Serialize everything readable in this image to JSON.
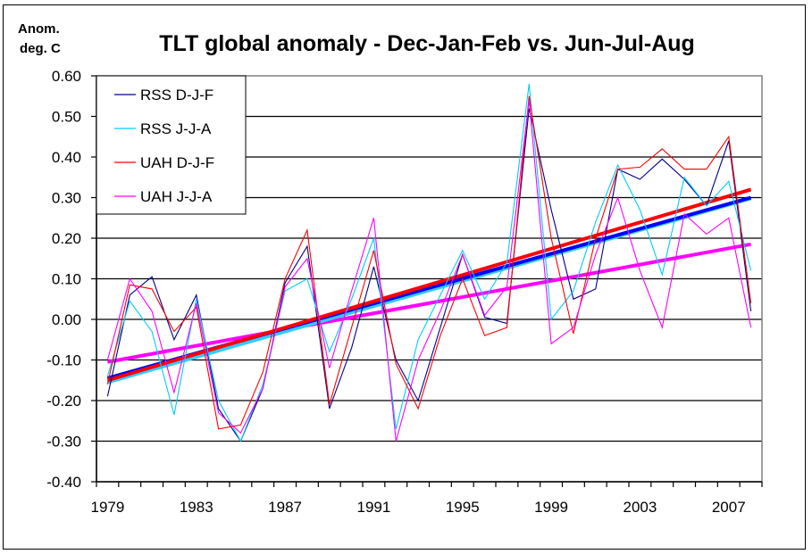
{
  "chart_data": {
    "type": "line",
    "title": "TLT global anomaly - Dec-Jan-Feb vs. Jun-Jul-Aug",
    "ylabel_lines": [
      "Anom.",
      "deg. C"
    ],
    "xlabel": "",
    "ylim": [
      -0.4,
      0.6
    ],
    "yticks": [
      "0.60",
      "0.50",
      "0.40",
      "0.30",
      "0.20",
      "0.10",
      "0.00",
      "-0.10",
      "-0.20",
      "-0.30",
      "-0.40"
    ],
    "ytick_values": [
      0.6,
      0.5,
      0.4,
      0.3,
      0.2,
      0.1,
      0.0,
      -0.1,
      -0.2,
      -0.3,
      -0.4
    ],
    "x": [
      1979,
      1980,
      1981,
      1982,
      1983,
      1984,
      1985,
      1986,
      1987,
      1988,
      1989,
      1990,
      1991,
      1992,
      1993,
      1994,
      1995,
      1996,
      1997,
      1998,
      1999,
      2000,
      2001,
      2002,
      2003,
      2004,
      2005,
      2006,
      2007,
      2008
    ],
    "xtick_labels": [
      "1979",
      "1983",
      "1987",
      "1991",
      "1995",
      "1999",
      "2003",
      "2007"
    ],
    "grid": "horizontal",
    "legend_position": "top-left",
    "series": [
      {
        "name": "RSS D-J-F",
        "color": "#00008B",
        "values": [
          -0.19,
          0.06,
          0.105,
          -0.05,
          0.06,
          -0.22,
          -0.3,
          -0.17,
          0.09,
          0.18,
          -0.22,
          -0.07,
          0.13,
          -0.1,
          -0.2,
          -0.02,
          0.16,
          0.005,
          -0.01,
          0.52,
          0.27,
          0.05,
          0.075,
          0.37,
          0.345,
          0.395,
          0.345,
          0.28,
          0.44,
          0.02
        ],
        "trend": [
          -0.145,
          0.3
        ],
        "trend_color": "#0000FF"
      },
      {
        "name": "RSS J-J-A",
        "color": "#00CCFF",
        "values": [
          -0.14,
          0.045,
          -0.03,
          -0.235,
          0.05,
          -0.2,
          -0.3,
          -0.16,
          0.07,
          0.1,
          -0.08,
          0.05,
          0.2,
          -0.27,
          -0.05,
          0.06,
          0.17,
          0.05,
          0.14,
          0.58,
          0.0,
          0.07,
          0.24,
          0.38,
          0.27,
          0.11,
          0.35,
          0.28,
          0.34,
          0.12
        ],
        "trend": [
          -0.155,
          0.298
        ],
        "trend_color": "#33CCFF"
      },
      {
        "name": "UAH D-J-F",
        "color": "#FF0000",
        "values": [
          -0.16,
          0.085,
          0.075,
          -0.03,
          0.03,
          -0.27,
          -0.26,
          -0.13,
          0.1,
          0.22,
          -0.21,
          -0.02,
          0.17,
          -0.11,
          -0.22,
          -0.04,
          0.1,
          -0.04,
          -0.02,
          0.55,
          0.2,
          -0.035,
          0.2,
          0.37,
          0.375,
          0.42,
          0.37,
          0.37,
          0.45,
          0.04
        ],
        "trend": [
          -0.15,
          0.32
        ],
        "trend_color": "#FF0000"
      },
      {
        "name": "UAH J-J-A",
        "color": "#FF00FF",
        "values": [
          -0.1,
          0.1,
          0.02,
          -0.18,
          0.04,
          -0.23,
          -0.28,
          -0.17,
          0.08,
          0.15,
          -0.12,
          0.07,
          0.25,
          -0.3,
          -0.1,
          0.02,
          0.16,
          0.01,
          0.08,
          0.54,
          -0.06,
          -0.02,
          0.16,
          0.3,
          0.12,
          -0.02,
          0.26,
          0.21,
          0.25,
          -0.02
        ],
        "trend": [
          -0.105,
          0.185
        ],
        "trend_color": "#FF00FF"
      }
    ]
  }
}
